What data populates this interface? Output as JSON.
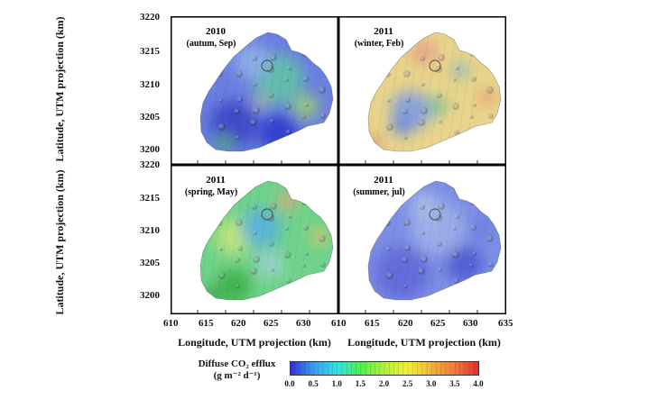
{
  "panels": [
    {
      "year": "2010",
      "season": "(autum, Sep)",
      "theme": "blue"
    },
    {
      "year": "2011",
      "season": "(winter, Feb)",
      "theme": "yellow"
    },
    {
      "year": "2011",
      "season": "(spring, May)",
      "theme": "green"
    },
    {
      "year": "2011",
      "season": "(summer, jul)",
      "theme": "bluepale"
    }
  ],
  "axes": {
    "ylabel": "Latitude, UTM projection (km)",
    "xlabel": "Longitude, UTM projection (km)",
    "y_ticks": [
      "3220",
      "3215",
      "3210",
      "3205",
      "3200"
    ],
    "y_ticks_lower": [
      "3220",
      "3215",
      "3210",
      "3205",
      "3200"
    ],
    "x_ticks_left": [
      "610",
      "615",
      "620",
      "625",
      "630"
    ],
    "x_ticks_right": [
      "610",
      "615",
      "620",
      "625",
      "630",
      "635"
    ]
  },
  "colorbar": {
    "title_line1": "Diffuse CO₂ efflux",
    "title_line2": "(g m⁻² d⁻¹)",
    "ticks": [
      "0.0",
      "0.5",
      "1.0",
      "1.5",
      "2.0",
      "2.5",
      "3.0",
      "3.5",
      "4.0"
    ],
    "colors": [
      "#2f2fd8",
      "#3aa0f0",
      "#35e0e0",
      "#4ef04e",
      "#b4f03a",
      "#f0f03a",
      "#f0b43a",
      "#f07a3a",
      "#e03030"
    ]
  }
}
